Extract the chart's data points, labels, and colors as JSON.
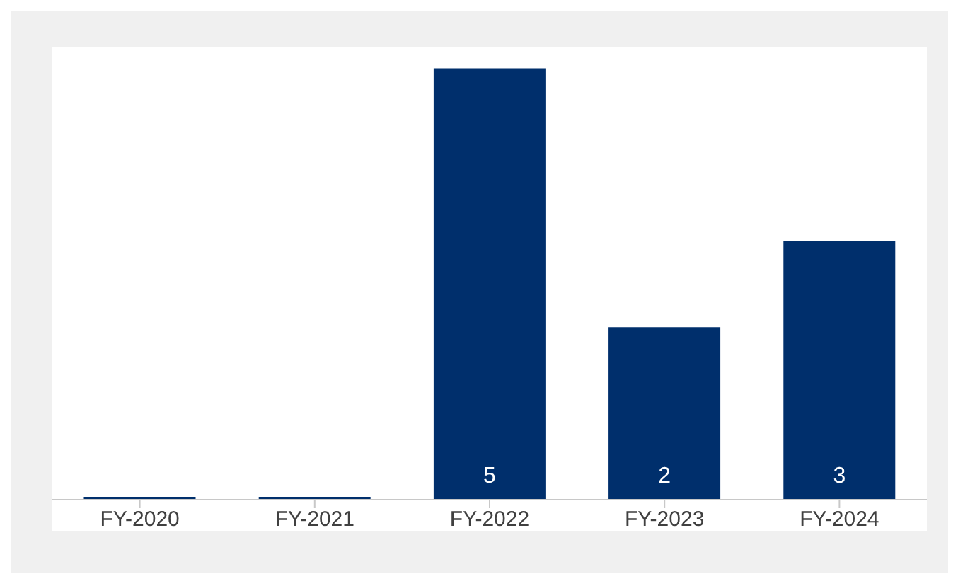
{
  "chart_data": {
    "type": "bar",
    "categories": [
      "FY-2020",
      "FY-2021",
      "FY-2022",
      "FY-2023",
      "FY-2024"
    ],
    "values": [
      0,
      0,
      5,
      2,
      3
    ],
    "value_labels": [
      null,
      null,
      "5",
      "2",
      "3"
    ],
    "color": "#002f6c",
    "ylim": [
      0,
      5.25
    ],
    "grid": false
  }
}
